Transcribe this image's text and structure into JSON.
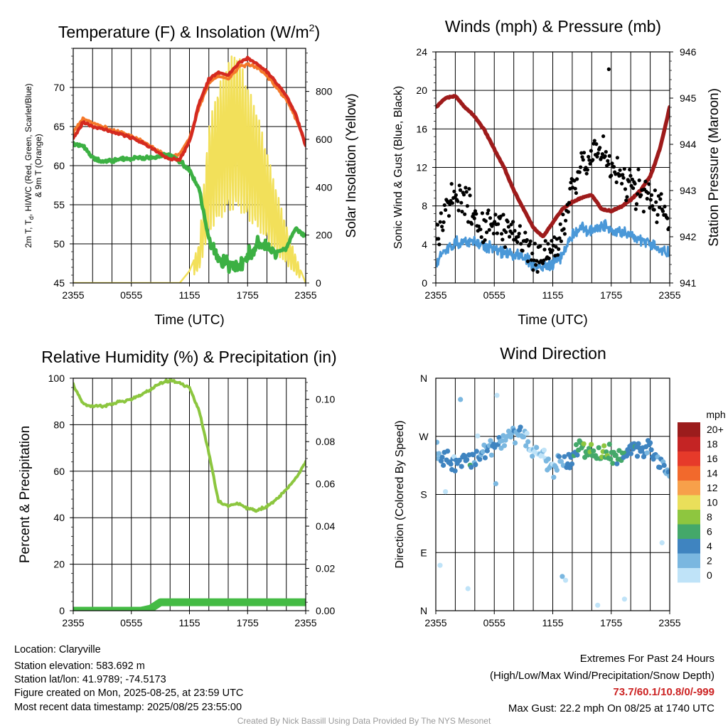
{
  "footer": {
    "location": "Location: Claryville",
    "elevation": "Station elevation: 583.692 m",
    "latlon": "Station lat/lon: 41.9789; -74.5173",
    "created": "Figure created on Mon, 2025-08-25, at 23:59 UTC",
    "recent": "Most recent data timestamp: 2025/08/25 23:55:00",
    "extremes_title": "Extremes For Past 24 Hours",
    "extremes_sub": "(High/Low/Max Wind/Precipitation/Snow Depth)",
    "extremes_values": "73.7/60.1/10.8/0/-999",
    "max_gust": "Max Gust: 22.2 mph On 08/25 at 1740 UTC",
    "credit": "Created By Nick Bassill Using Data Provided By The NYS Mesonet"
  },
  "colors": {
    "temp_red": "#d42a20",
    "dewpoint_green": "#3cb043",
    "orange": "#f5782a",
    "solar_yellow": "#f2e05a",
    "pressure_maroon": "#9e1b1b",
    "wind_blue": "#4a98d8",
    "gust_black": "#000000",
    "rh_green": "#8cc63f",
    "precip_green": "#44bb44",
    "extremes_red": "#cc2222"
  },
  "chart_data": [
    {
      "type": "line",
      "title": "Temperature (F) & Insolation (W/m²)",
      "xlabel": "Time (UTC)",
      "ylabel": "2m T, T_d, HI/WC (Red, Green, Scarlet/Blue) & 9m T (Orange)",
      "y2label": "Solar Insolation (Yellow)",
      "x_ticks": [
        "2355",
        "0555",
        "1155",
        "1755",
        "2355"
      ],
      "ylim": [
        45,
        75
      ],
      "y_ticks": [
        45,
        50,
        55,
        60,
        65,
        70
      ],
      "y2lim": [
        0,
        980
      ],
      "y2_ticks": [
        0,
        200,
        400,
        600,
        800
      ],
      "hours": [
        0,
        1,
        2,
        3,
        4,
        5,
        6,
        7,
        8,
        9,
        10,
        11,
        12,
        13,
        14,
        15,
        16,
        17,
        18,
        19,
        20,
        21,
        22,
        23,
        24
      ],
      "series": [
        {
          "key": "t9m",
          "values": [
            64.3,
            66.0,
            65.5,
            65.0,
            64.5,
            64.2,
            63.8,
            63.2,
            62.5,
            61.8,
            61.2,
            61.5,
            63.5,
            67.5,
            70.5,
            71.5,
            71.0,
            72.5,
            73.0,
            72.5,
            71.5,
            70.0,
            68.5,
            66.0,
            62.8
          ]
        },
        {
          "key": "t2m",
          "values": [
            63.5,
            65.5,
            65.0,
            64.7,
            64.3,
            64.0,
            63.6,
            63.0,
            62.3,
            61.5,
            60.8,
            60.8,
            63.0,
            68.0,
            71.0,
            72.0,
            71.5,
            73.0,
            73.7,
            73.0,
            72.0,
            70.5,
            69.0,
            66.5,
            62.5
          ]
        },
        {
          "key": "dewpoint",
          "values": [
            62.8,
            62.5,
            61.0,
            60.5,
            60.6,
            60.8,
            60.9,
            61.0,
            61.0,
            61.2,
            61.4,
            60.5,
            59.5,
            57.0,
            50.5,
            48.0,
            47.5,
            47.0,
            48.5,
            50.0,
            49.5,
            49.0,
            49.5,
            52.0,
            51.0
          ]
        },
        {
          "key": "solar",
          "values": [
            0,
            0,
            0,
            0,
            0,
            0,
            0,
            0,
            0,
            0,
            0,
            0,
            50,
            150,
            600,
            750,
            850,
            880,
            750,
            650,
            500,
            350,
            220,
            100,
            0
          ]
        }
      ]
    },
    {
      "type": "line",
      "title": "Winds (mph) & Pressure (mb)",
      "xlabel": "Time (UTC)",
      "ylabel": "Sonic Wind & Gust (Blue, Black)",
      "y2label": "Station Pressure (Maroon)",
      "x_ticks": [
        "2355",
        "0555",
        "1155",
        "1755",
        "2355"
      ],
      "ylim": [
        0,
        24
      ],
      "y_ticks": [
        0,
        4,
        8,
        12,
        16,
        20,
        24
      ],
      "y2lim": [
        941,
        946
      ],
      "y2_ticks": [
        941,
        942,
        943,
        944,
        945,
        946
      ],
      "hours": [
        0,
        1,
        2,
        3,
        4,
        5,
        6,
        7,
        8,
        9,
        10,
        11,
        12,
        13,
        14,
        15,
        16,
        17,
        18,
        19,
        20,
        21,
        22,
        23,
        24
      ],
      "series": [
        {
          "key": "pressure",
          "values": [
            944.8,
            945.0,
            945.05,
            944.8,
            944.6,
            944.3,
            943.9,
            943.5,
            943.0,
            942.6,
            942.2,
            942.0,
            942.3,
            942.6,
            942.75,
            942.85,
            942.9,
            942.6,
            942.55,
            942.65,
            942.8,
            943.0,
            943.3,
            943.9,
            944.8
          ]
        },
        {
          "key": "wind",
          "values": [
            2.0,
            3.5,
            4.0,
            4.5,
            4.2,
            4.0,
            3.5,
            3.2,
            3.0,
            2.8,
            1.8,
            1.5,
            2.0,
            3.0,
            5.0,
            5.8,
            5.5,
            6.0,
            5.5,
            5.2,
            5.0,
            4.5,
            4.0,
            3.5,
            3.0
          ]
        },
        {
          "key": "gust",
          "values": [
            5.0,
            8.5,
            9.0,
            8.5,
            7.0,
            6.0,
            6.0,
            5.5,
            5.0,
            4.5,
            3.0,
            2.5,
            3.5,
            6.0,
            10.0,
            12.5,
            13.0,
            13.5,
            12.0,
            11.0,
            10.0,
            9.5,
            9.0,
            8.0,
            7.0
          ]
        }
      ],
      "max_gust_point": {
        "hour": 17.75,
        "value": 22.2
      }
    },
    {
      "type": "line",
      "title": "Relative Humidity (%) & Precipitation (in)",
      "xlabel": "",
      "ylabel": "Percent & Precipitation",
      "x_ticks": [
        "2355",
        "0555",
        "1155",
        "1755",
        "2355"
      ],
      "ylim": [
        0,
        100
      ],
      "y_ticks": [
        0,
        20,
        40,
        60,
        80,
        100
      ],
      "y2lim": [
        0,
        0.11
      ],
      "y2_ticks": [
        "0.00",
        "0.02",
        "0.04",
        "0.06",
        "0.08",
        "0.10"
      ],
      "hours": [
        0,
        1,
        2,
        3,
        4,
        5,
        6,
        7,
        8,
        9,
        10,
        11,
        12,
        13,
        14,
        15,
        16,
        17,
        18,
        19,
        20,
        21,
        22,
        23,
        24
      ],
      "series": [
        {
          "key": "rh",
          "values": [
            97,
            89,
            88,
            88,
            89,
            90,
            91,
            93,
            95,
            98,
            99,
            98,
            96,
            86,
            68,
            47,
            45,
            46,
            44,
            43,
            45,
            48,
            52,
            57,
            64
          ]
        },
        {
          "key": "precip",
          "values": [
            0,
            0,
            0,
            0,
            0,
            0,
            0,
            0,
            0.001,
            0.004,
            0.004,
            0.004,
            0.004,
            0.004,
            0.004,
            0.004,
            0.004,
            0.004,
            0.004,
            0.004,
            0.004,
            0.004,
            0.004,
            0.004,
            0.004
          ]
        }
      ]
    },
    {
      "type": "scatter",
      "title": "Wind Direction",
      "xlabel": "",
      "ylabel": "Direction (Colored By Speed)",
      "x_ticks": [
        "2355",
        "0555",
        "1155",
        "1755",
        "2355"
      ],
      "y_ticks": [
        "N",
        "E",
        "S",
        "W",
        "N"
      ],
      "ylim": [
        0,
        360
      ],
      "legend": {
        "title": "mph",
        "placement": "right",
        "labels": [
          "20+",
          "18",
          "16",
          "14",
          "12",
          "10",
          "8",
          "6",
          "4",
          "2",
          "0"
        ],
        "colors": [
          "#9b1c1c",
          "#c42424",
          "#e63a2a",
          "#f2692c",
          "#f7a04a",
          "#eadf5a",
          "#8ec63f",
          "#44a86a",
          "#3f84c0",
          "#7ab7e0",
          "#bfe3f8"
        ]
      },
      "hours": [
        0,
        1,
        2,
        3,
        4,
        5,
        6,
        7,
        8,
        9,
        10,
        11,
        12,
        13,
        14,
        15,
        16,
        17,
        18,
        19,
        20,
        21,
        22,
        23,
        24
      ],
      "direction_deg": [
        245,
        238,
        232,
        230,
        235,
        245,
        255,
        265,
        275,
        270,
        255,
        240,
        220,
        225,
        240,
        250,
        248,
        245,
        240,
        238,
        250,
        245,
        250,
        230,
        215
      ],
      "speed_mph": [
        2,
        4,
        4,
        4,
        4,
        3,
        3,
        2,
        2,
        2,
        1,
        1,
        2,
        3,
        5,
        6,
        6,
        7,
        6,
        5,
        5,
        4,
        4,
        3,
        3
      ]
    }
  ]
}
